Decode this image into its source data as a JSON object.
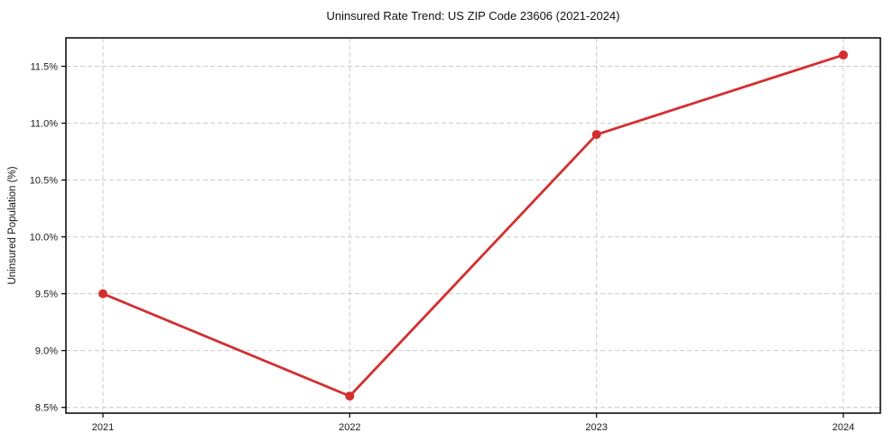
{
  "chart_data": {
    "type": "line",
    "title": "Uninsured Rate Trend: US ZIP Code 23606 (2021-2024)",
    "xlabel": "",
    "ylabel": "Uninsured Population (%)",
    "x": [
      2021,
      2022,
      2023,
      2024
    ],
    "x_tick_labels": [
      "2021",
      "2022",
      "2023",
      "2024"
    ],
    "values": [
      9.5,
      8.6,
      10.9,
      11.6
    ],
    "y_ticks": [
      8.5,
      9.0,
      9.5,
      10.0,
      10.5,
      11.0,
      11.5
    ],
    "y_tick_labels": [
      "8.5%",
      "9.0%",
      "9.5%",
      "10.0%",
      "10.5%",
      "11.0%",
      "11.5%"
    ],
    "xlim": [
      2020.85,
      2024.15
    ],
    "ylim": [
      8.45,
      11.75
    ],
    "grid": true,
    "legend": "none",
    "line_color": "#d32f2f",
    "marker_color": "#d32f2f",
    "grid_color": "#cccccc",
    "spine_color": "#000000",
    "background_color": "#ffffff"
  }
}
